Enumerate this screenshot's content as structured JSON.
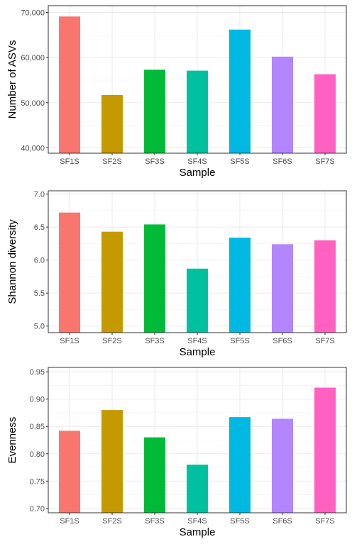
{
  "chart_data": [
    {
      "type": "bar",
      "categories": [
        "SF1S",
        "SF2S",
        "SF3S",
        "SF4S",
        "SF5S",
        "SF6S",
        "SF7S"
      ],
      "values": [
        69100,
        51700,
        57300,
        57100,
        66200,
        60200,
        56300
      ],
      "xlabel": "Sample",
      "ylabel": "Number of ASVs",
      "ylim": [
        38800,
        71500
      ],
      "yticks": [
        40000,
        50000,
        60000,
        70000
      ],
      "ytick_labels": [
        "40,000",
        "50,000",
        "60,000",
        "70,000"
      ],
      "grid": true
    },
    {
      "type": "bar",
      "categories": [
        "SF1S",
        "SF2S",
        "SF3S",
        "SF4S",
        "SF5S",
        "SF6S",
        "SF7S"
      ],
      "values": [
        6.72,
        6.43,
        6.54,
        5.87,
        6.34,
        6.24,
        6.3
      ],
      "xlabel": "Sample",
      "ylabel": "Shannon diversity",
      "ylim": [
        4.9,
        7.05
      ],
      "yticks": [
        5.0,
        5.5,
        6.0,
        6.5,
        7.0
      ],
      "ytick_labels": [
        "5.0",
        "5.5",
        "6.0",
        "6.5",
        "7.0"
      ],
      "grid": true
    },
    {
      "type": "bar",
      "categories": [
        "SF1S",
        "SF2S",
        "SF3S",
        "SF4S",
        "SF5S",
        "SF6S",
        "SF7S"
      ],
      "values": [
        0.842,
        0.88,
        0.83,
        0.78,
        0.867,
        0.864,
        0.921
      ],
      "xlabel": "Sample",
      "ylabel": "Evenness",
      "ylim": [
        0.692,
        0.958
      ],
      "yticks": [
        0.7,
        0.75,
        0.8,
        0.85,
        0.9,
        0.95
      ],
      "ytick_labels": [
        "0.70",
        "0.75",
        "0.80",
        "0.85",
        "0.90",
        "0.95"
      ],
      "grid": true
    }
  ],
  "colors": [
    "#F8766D",
    "#C49A00",
    "#00BA38",
    "#00C19F",
    "#00B9E3",
    "#B385FF",
    "#FF61C3"
  ]
}
